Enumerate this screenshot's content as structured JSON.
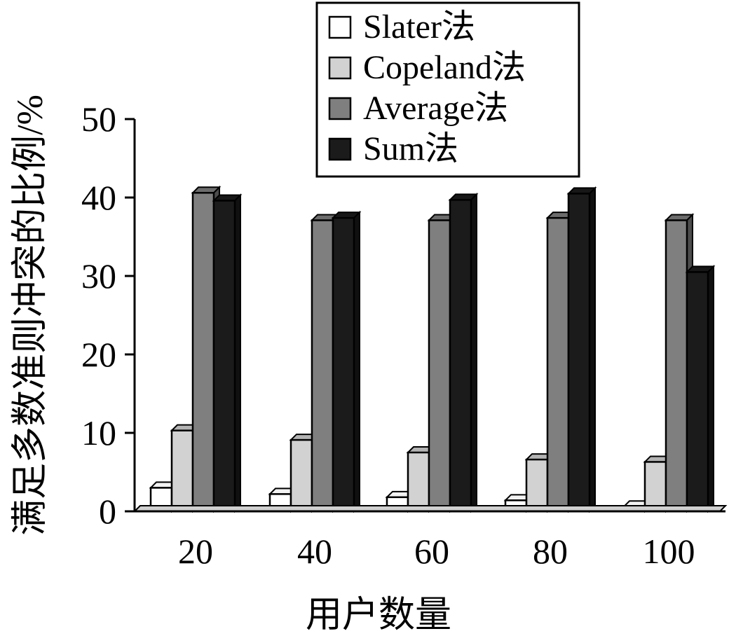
{
  "chart_data": {
    "type": "bar",
    "title": "",
    "xlabel": "用户数量",
    "ylabel": "满足多数准则冲突的比例/%",
    "categories": [
      "20",
      "40",
      "60",
      "80",
      "100"
    ],
    "ylim": [
      0,
      50
    ],
    "yticks": [
      "0",
      "10",
      "20",
      "30",
      "40",
      "50"
    ],
    "grid": false,
    "legend_position": "top-center",
    "series": [
      {
        "name": "Slater法",
        "color": "#ffffff",
        "values": [
          3.0,
          2.2,
          1.8,
          1.4,
          0.6
        ]
      },
      {
        "name": "Copeland法",
        "color": "#d2d2d2",
        "values": [
          10.3,
          9.1,
          7.5,
          6.6,
          6.3
        ]
      },
      {
        "name": "Average法",
        "color": "#7f7f7f",
        "values": [
          40.6,
          37.1,
          37.1,
          37.4,
          37.1
        ]
      },
      {
        "name": "Sum法",
        "color": "#1b1b1b",
        "values": [
          39.6,
          37.4,
          39.7,
          40.5,
          30.5
        ]
      }
    ]
  }
}
